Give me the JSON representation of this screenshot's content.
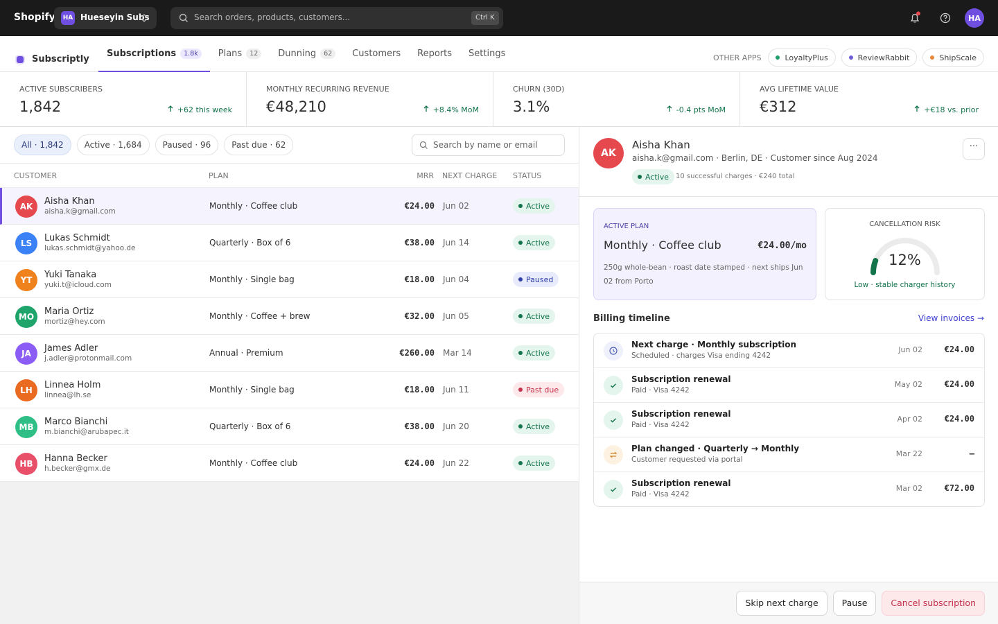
{
  "topbar": {
    "brand": "Shopify",
    "store_initials": "HA",
    "store_name": "Hueseyin Subs",
    "search_placeholder": "Search orders, products, customers...",
    "shortcut": "Ctrl K",
    "user_initials": "HA"
  },
  "app_nav": {
    "app_name": "Subscriptly",
    "tabs": [
      {
        "label": "Subscriptions",
        "count": "1.8k"
      },
      {
        "label": "Plans",
        "count": "12"
      },
      {
        "label": "Dunning",
        "count": "62"
      },
      {
        "label": "Customers"
      },
      {
        "label": "Reports"
      },
      {
        "label": "Settings"
      }
    ],
    "other_apps_label": "OTHER APPS",
    "other_apps": [
      {
        "name": "LoyaltyPlus",
        "color": "#1f9d6b"
      },
      {
        "name": "ReviewRabbit",
        "color": "#6b5bd6"
      },
      {
        "name": "ShipScale",
        "color": "#e8883a"
      }
    ]
  },
  "stats": [
    {
      "label": "ACTIVE SUBSCRIBERS",
      "value": "1,842",
      "delta": "+62 this week"
    },
    {
      "label": "MONTHLY RECURRING REVENUE",
      "value": "€48,210",
      "delta": "+8.4% MoM"
    },
    {
      "label": "CHURN (30D)",
      "value": "3.1%",
      "delta": "-0.4 pts MoM"
    },
    {
      "label": "AVG LIFETIME VALUE",
      "value": "€312",
      "delta": "+€18 vs. prior"
    }
  ],
  "filters": [
    "All · 1,842",
    "Active · 1,684",
    "Paused · 96",
    "Past due · 62"
  ],
  "list_search_placeholder": "Search by name or email",
  "table": {
    "headers": [
      "CUSTOMER",
      "PLAN",
      "MRR",
      "NEXT CHARGE",
      "STATUS"
    ],
    "rows": [
      {
        "initials": "AK",
        "color": "#e5484d",
        "name": "Aisha Khan",
        "email": "aisha.k@gmail.com",
        "plan": "Monthly · Coffee club",
        "mrr": "€24.00",
        "next_charge": "Jun 02",
        "status": "Active",
        "status_tone": "green"
      },
      {
        "initials": "LS",
        "color": "#3b82f6",
        "name": "Lukas Schmidt",
        "email": "lukas.schmidt@yahoo.de",
        "plan": "Quarterly · Box of 6",
        "mrr": "€38.00",
        "next_charge": "Jun 14",
        "status": "Active",
        "status_tone": "green"
      },
      {
        "initials": "YT",
        "color": "#f0821e",
        "name": "Yuki Tanaka",
        "email": "yuki.t@icloud.com",
        "plan": "Monthly · Single bag",
        "mrr": "€18.00",
        "next_charge": "Jun 04",
        "status": "Paused",
        "status_tone": "blue"
      },
      {
        "initials": "MO",
        "color": "#1fa56b",
        "name": "Maria Ortiz",
        "email": "mortiz@hey.com",
        "plan": "Monthly · Coffee + brew",
        "mrr": "€32.00",
        "next_charge": "Jun 05",
        "status": "Active",
        "status_tone": "green"
      },
      {
        "initials": "JA",
        "color": "#8b5cf6",
        "name": "James Adler",
        "email": "j.adler@protonmail.com",
        "plan": "Annual · Premium",
        "mrr": "€260.00",
        "next_charge": "Mar 14",
        "status": "Active",
        "status_tone": "green"
      },
      {
        "initials": "LH",
        "color": "#ea6a1f",
        "name": "Linnea Holm",
        "email": "linnea@lh.se",
        "plan": "Monthly · Single bag",
        "mrr": "€18.00",
        "next_charge": "Jun 11",
        "status": "Past due",
        "status_tone": "red"
      },
      {
        "initials": "MB",
        "color": "#2fbf86",
        "name": "Marco Bianchi",
        "email": "m.bianchi@arubapec.it",
        "plan": "Quarterly · Box of 6",
        "mrr": "€38.00",
        "next_charge": "Jun 20",
        "status": "Active",
        "status_tone": "green"
      },
      {
        "initials": "HB",
        "color": "#e8506a",
        "name": "Hanna Becker",
        "email": "h.becker@gmx.de",
        "plan": "Monthly · Coffee club",
        "mrr": "€24.00",
        "next_charge": "Jun 22",
        "status": "Active",
        "status_tone": "green"
      }
    ]
  },
  "detail": {
    "initials": "AK",
    "color": "#e5484d",
    "name": "Aisha Khan",
    "meta": "aisha.k@gmail.com · Berlin, DE · Customer since Aug 2024",
    "status": "Active",
    "charges": "10 successful charges · €240 total",
    "plan_card": {
      "label": "ACTIVE PLAN",
      "name": "Monthly · Coffee club",
      "price": "€24.00/mo",
      "description": "250g whole-bean · roast date stamped · next ships Jun 02 from Porto"
    },
    "risk": {
      "label": "CANCELLATION RISK",
      "value": 12,
      "range": [
        0,
        100
      ],
      "value_label": "12%",
      "note": "Low · stable charger history"
    },
    "timeline_title": "Billing timeline",
    "view_invoices": "View invoices →",
    "timeline": [
      {
        "icon": "clock",
        "title": "Next charge · Monthly subscription",
        "subtitle": "Scheduled · charges Visa ending 4242",
        "date": "Jun 02",
        "amount": "€24.00"
      },
      {
        "icon": "check",
        "title": "Subscription renewal",
        "subtitle": "Paid · Visa 4242",
        "date": "May 02",
        "amount": "€24.00"
      },
      {
        "icon": "check",
        "title": "Subscription renewal",
        "subtitle": "Paid · Visa 4242",
        "date": "Apr 02",
        "amount": "€24.00"
      },
      {
        "icon": "swap",
        "title": "Plan changed · Quarterly → Monthly",
        "subtitle": "Customer requested via portal",
        "date": "Mar 22",
        "amount": "—"
      },
      {
        "icon": "check",
        "title": "Subscription renewal",
        "subtitle": "Paid · Visa 4242",
        "date": "Mar 02",
        "amount": "€72.00"
      }
    ],
    "actions": [
      "Skip next charge",
      "Pause",
      "Cancel subscription"
    ]
  }
}
